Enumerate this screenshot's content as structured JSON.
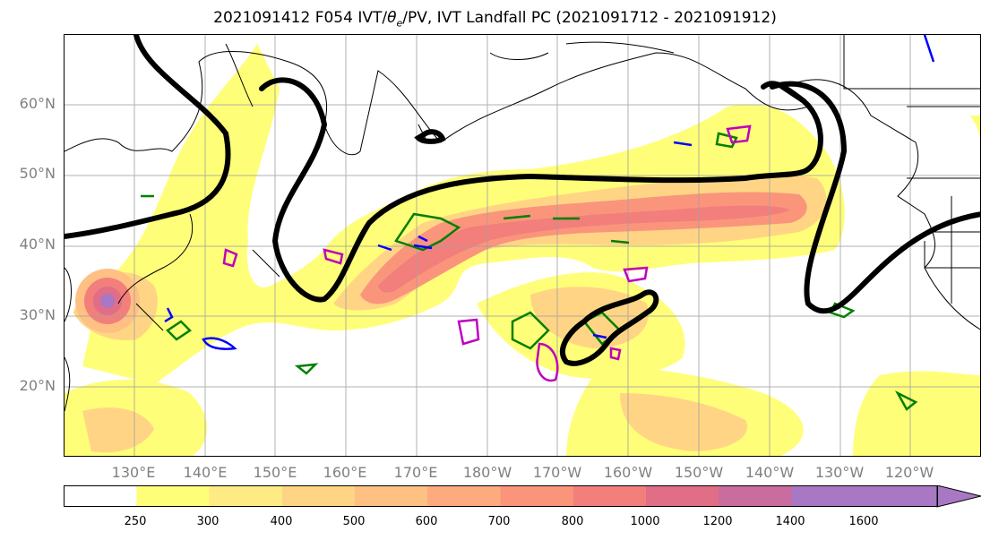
{
  "title_prefix": "2021091412 F054 IVT/",
  "title_theta": "θ",
  "title_sub": "e",
  "title_suffix": "/PV, IVT Landfall PC (2021091712 - 2021091912)",
  "lat_labels": [
    "60°N",
    "50°N",
    "40°N",
    "30°N",
    "20°N"
  ],
  "lon_labels": [
    "130°E",
    "140°E",
    "150°E",
    "160°E",
    "170°E",
    "180°W",
    "170°W",
    "160°W",
    "150°W",
    "140°W",
    "130°W",
    "120°W"
  ],
  "colorbar_ticks": [
    "250",
    "300",
    "400",
    "500",
    "600",
    "700",
    "800",
    "1000",
    "1200",
    "1400",
    "1600"
  ],
  "colorbar_colors": [
    "#ffffff",
    "#fffe79",
    "#ffeb84",
    "#ffd585",
    "#ffc083",
    "#fdaa7f",
    "#fa957c",
    "#f27f7c",
    "#e06e86",
    "#c86d9e",
    "#a878c4"
  ],
  "colors": {
    "ivt_contour_black": "#000000",
    "theta_e_green": "#008000",
    "pv_blue": "#0000ff",
    "pv_magenta": "#bf00bf",
    "grid": "#a0a0a0",
    "coastline": "#000000"
  },
  "map": {
    "projection": "PlateCarree (central longitude ~180)",
    "lon_range": "120°E - 110°W",
    "lat_range": "10°N - 70°N",
    "gridlines": true,
    "overlays": [
      "IVT filled contours",
      "IVT landfall PC black contour",
      "theta_e green contours",
      "PV blue/magenta contours"
    ]
  }
}
